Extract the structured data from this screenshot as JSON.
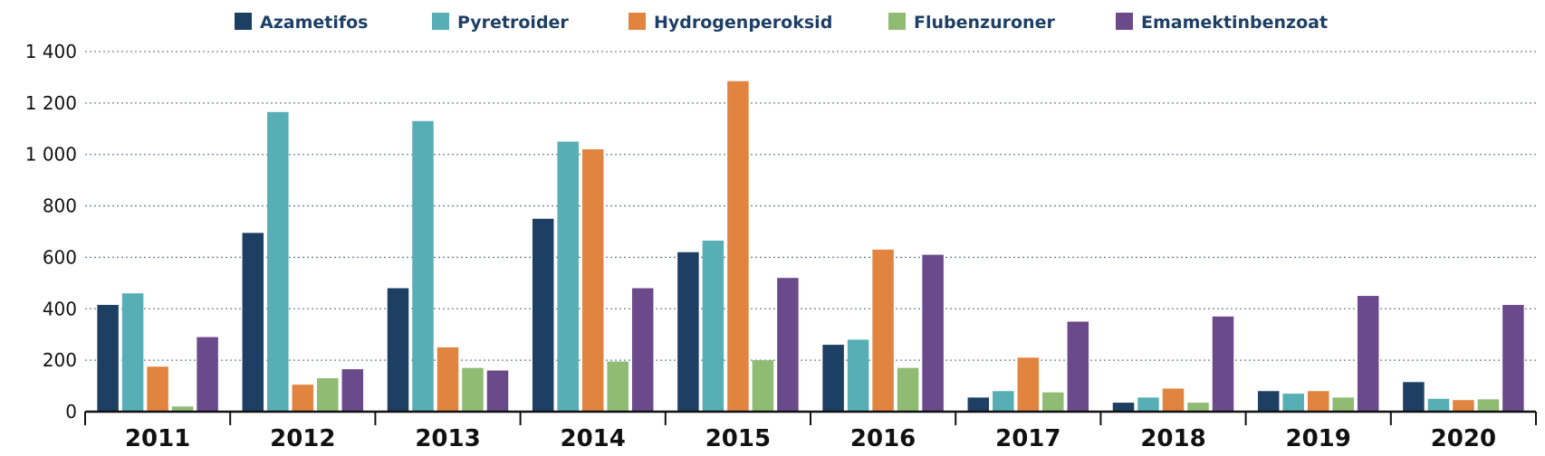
{
  "chart_data": {
    "type": "bar",
    "categories": [
      "2011",
      "2012",
      "2013",
      "2014",
      "2015",
      "2016",
      "2017",
      "2018",
      "2019",
      "2020"
    ],
    "series": [
      {
        "name": "Azametifos",
        "color": "#1d3f63",
        "values": [
          415,
          695,
          480,
          750,
          620,
          260,
          55,
          35,
          80,
          115
        ]
      },
      {
        "name": "Pyretroider",
        "color": "#57aeb5",
        "values": [
          460,
          1165,
          1130,
          1050,
          665,
          280,
          80,
          55,
          70,
          50
        ]
      },
      {
        "name": "Hydrogenperoksid",
        "color": "#e1843f",
        "values": [
          175,
          105,
          250,
          1020,
          1285,
          630,
          210,
          90,
          80,
          45
        ]
      },
      {
        "name": "Flubenzuroner",
        "color": "#8fbb72",
        "values": [
          20,
          130,
          170,
          195,
          200,
          170,
          75,
          35,
          55,
          48
        ]
      },
      {
        "name": "Emamektinbenzoat",
        "color": "#6b4a8b",
        "values": [
          290,
          165,
          160,
          480,
          520,
          610,
          350,
          370,
          450,
          415
        ]
      }
    ],
    "yticks": [
      "0",
      "200",
      "400",
      "600",
      "800",
      "1 000",
      "1 200",
      "1 400"
    ],
    "ylim": [
      0,
      1400
    ],
    "grid": true,
    "legend_position": "top"
  }
}
